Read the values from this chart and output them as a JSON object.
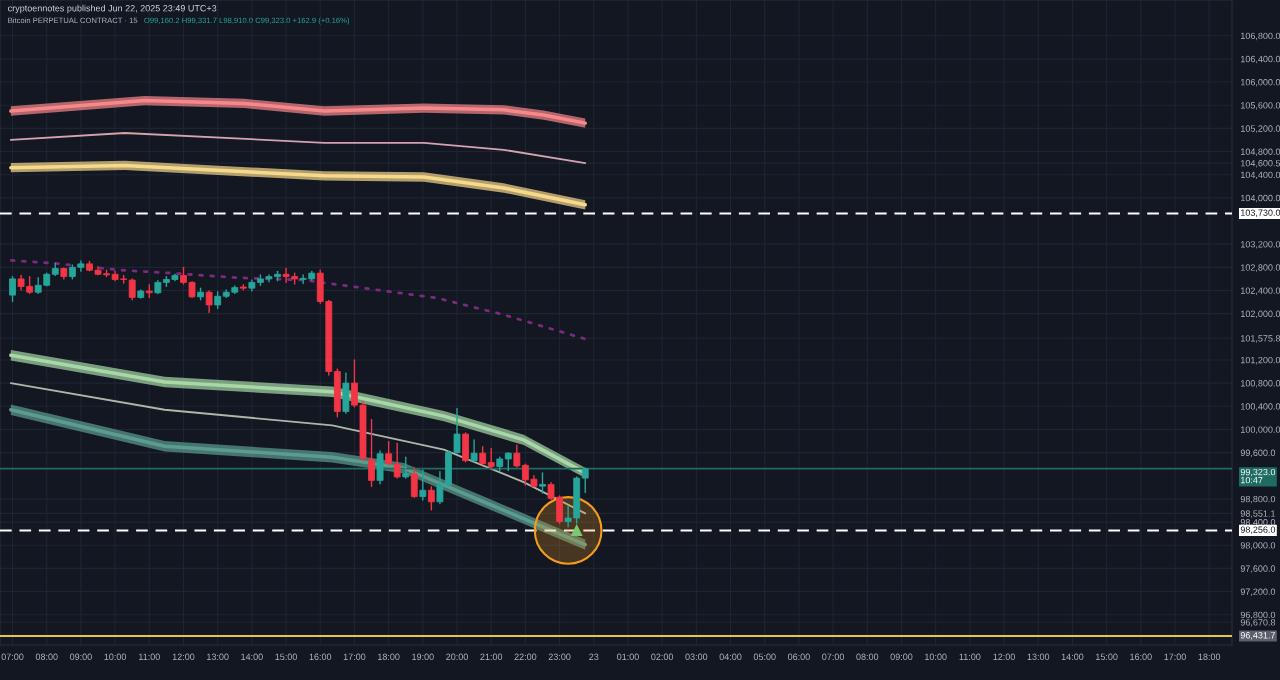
{
  "chart_data": {
    "type": "candlestick",
    "title": "Bitcoin PERPETUAL CONTRACT · 15",
    "subtitle": "O99,160.2 H99,331.7 L98,910.0 C99,323.0 +162.9 (+0.16%)",
    "annotations": [
      "cryptoennotes published Jun 22, 2025 23:49 UTC+3"
    ],
    "x": [
      "2025-06-22T07:00",
      "2025-06-22T07:15",
      "2025-06-22T07:30",
      "2025-06-22T07:45",
      "2025-06-22T08:00",
      "2025-06-22T08:15",
      "2025-06-22T08:30",
      "2025-06-22T08:45",
      "2025-06-22T09:00",
      "2025-06-22T09:15",
      "2025-06-22T09:30",
      "2025-06-22T09:45",
      "2025-06-22T10:00",
      "2025-06-22T10:15",
      "2025-06-22T10:30",
      "2025-06-22T10:45",
      "2025-06-22T11:00",
      "2025-06-22T11:15",
      "2025-06-22T11:30",
      "2025-06-22T11:45",
      "2025-06-22T12:00",
      "2025-06-22T12:15",
      "2025-06-22T12:30",
      "2025-06-22T12:45",
      "2025-06-22T13:00",
      "2025-06-22T13:15",
      "2025-06-22T13:30",
      "2025-06-22T13:45",
      "2025-06-22T14:00",
      "2025-06-22T14:15",
      "2025-06-22T14:30",
      "2025-06-22T14:45",
      "2025-06-22T15:00",
      "2025-06-22T15:15",
      "2025-06-22T15:30",
      "2025-06-22T15:45",
      "2025-06-22T16:00",
      "2025-06-22T16:15",
      "2025-06-22T16:30",
      "2025-06-22T16:45",
      "2025-06-22T17:00",
      "2025-06-22T17:15",
      "2025-06-22T17:30",
      "2025-06-22T17:45",
      "2025-06-22T18:00",
      "2025-06-22T18:15",
      "2025-06-22T18:30",
      "2025-06-22T18:45",
      "2025-06-22T19:00",
      "2025-06-22T19:15",
      "2025-06-22T19:30",
      "2025-06-22T19:45",
      "2025-06-22T20:00",
      "2025-06-22T20:15",
      "2025-06-22T20:30",
      "2025-06-22T20:45",
      "2025-06-22T21:00",
      "2025-06-22T21:15",
      "2025-06-22T21:30",
      "2025-06-22T21:45",
      "2025-06-22T22:00",
      "2025-06-22T22:15",
      "2025-06-22T22:30",
      "2025-06-22T22:45",
      "2025-06-22T23:00",
      "2025-06-22T23:15",
      "2025-06-22T23:30",
      "2025-06-22T23:45"
    ],
    "ohlc": [
      [
        102320,
        102640,
        102210,
        102600
      ],
      [
        102600,
        102660,
        102410,
        102470
      ],
      [
        102470,
        102640,
        102350,
        102370
      ],
      [
        102370,
        102620,
        102350,
        102490
      ],
      [
        102490,
        102700,
        102480,
        102680
      ],
      [
        102680,
        102870,
        102660,
        102780
      ],
      [
        102780,
        102790,
        102600,
        102640
      ],
      [
        102640,
        102840,
        102600,
        102800
      ],
      [
        102800,
        102910,
        102730,
        102860
      ],
      [
        102860,
        102900,
        102740,
        102750
      ],
      [
        102750,
        102810,
        102670,
        102680
      ],
      [
        102690,
        102750,
        102640,
        102670
      ],
      [
        102680,
        102730,
        102570,
        102590
      ],
      [
        102600,
        102660,
        102530,
        102590
      ],
      [
        102580,
        102600,
        102240,
        102280
      ],
      [
        102280,
        102410,
        102270,
        102390
      ],
      [
        102390,
        102500,
        102280,
        102360
      ],
      [
        102360,
        102570,
        102350,
        102540
      ],
      [
        102540,
        102640,
        102470,
        102590
      ],
      [
        102590,
        102680,
        102570,
        102660
      ],
      [
        102660,
        102800,
        102510,
        102540
      ],
      [
        102540,
        102550,
        102280,
        102290
      ],
      [
        102290,
        102440,
        102240,
        102370
      ],
      [
        102370,
        102390,
        102020,
        102150
      ],
      [
        102150,
        102380,
        102090,
        102300
      ],
      [
        102300,
        102410,
        102280,
        102370
      ],
      [
        102370,
        102480,
        102350,
        102450
      ],
      [
        102460,
        102500,
        102410,
        102440
      ],
      [
        102440,
        102580,
        102390,
        102540
      ],
      [
        102540,
        102670,
        102490,
        102600
      ],
      [
        102600,
        102670,
        102550,
        102640
      ],
      [
        102640,
        102730,
        102570,
        102680
      ],
      [
        102680,
        102780,
        102540,
        102640
      ],
      [
        102640,
        102700,
        102510,
        102600
      ],
      [
        102590,
        102670,
        102520,
        102610
      ],
      [
        102600,
        102730,
        102580,
        102700
      ],
      [
        102700,
        102750,
        102180,
        102210
      ],
      [
        102210,
        102230,
        100940,
        101000
      ],
      [
        101000,
        101040,
        100220,
        100310
      ],
      [
        100310,
        100970,
        100280,
        100800
      ],
      [
        100800,
        101200,
        100390,
        100420
      ],
      [
        100420,
        100480,
        99470,
        99500
      ],
      [
        99480,
        100170,
        99020,
        99120
      ],
      [
        99120,
        99630,
        99060,
        99580
      ],
      [
        99580,
        99790,
        99390,
        99410
      ],
      [
        99400,
        99760,
        99160,
        99180
      ],
      [
        99180,
        99520,
        99160,
        99240
      ],
      [
        99230,
        99330,
        98830,
        98840
      ],
      [
        98840,
        99300,
        98780,
        98950
      ],
      [
        98950,
        99010,
        98610,
        98750
      ],
      [
        98750,
        99270,
        98720,
        99040
      ],
      [
        99040,
        99620,
        99020,
        99600
      ],
      [
        99600,
        100360,
        99590,
        99920
      ],
      [
        99920,
        99940,
        99440,
        99460
      ],
      [
        99460,
        99820,
        99440,
        99590
      ],
      [
        99590,
        99700,
        99390,
        99410
      ],
      [
        99430,
        99670,
        99330,
        99360
      ],
      [
        99360,
        99520,
        99290,
        99490
      ],
      [
        99490,
        99600,
        99290,
        99590
      ],
      [
        99590,
        99730,
        99350,
        99370
      ],
      [
        99380,
        99400,
        99040,
        99130
      ],
      [
        99140,
        99200,
        99010,
        99020
      ],
      [
        99020,
        99250,
        98900,
        99050
      ],
      [
        99050,
        99080,
        98790,
        98810
      ],
      [
        98830,
        98850,
        98380,
        98410
      ],
      [
        98410,
        98670,
        98320,
        98470
      ],
      [
        98470,
        99180,
        98380,
        99160
      ],
      [
        99160.2,
        99331.7,
        98910.0,
        99323.0
      ]
    ],
    "series": [
      {
        "type": "line",
        "color": "#f7888a",
        "x": [
          "2025-06-22T06:57",
          "2025-06-22T10:52",
          "2025-06-22T13:47",
          "2025-06-22T16:07",
          "2025-06-22T19:02",
          "2025-06-22T21:22",
          "2025-06-22T22:32",
          "2025-06-22T23:45"
        ],
        "values": [
          105500,
          105680,
          105630,
          105500,
          105550,
          105520,
          105430,
          105290
        ],
        "lower": [
          105420,
          105600,
          105550,
          105420,
          105470,
          105440,
          105350,
          105210
        ],
        "upper": [
          105580,
          105760,
          105710,
          105580,
          105630,
          105600,
          105510,
          105370
        ]
      },
      {
        "type": "line",
        "color": "#d4a3ad",
        "x": [
          "2025-06-22T06:57",
          "2025-06-22T10:17",
          "2025-06-22T16:07",
          "2025-06-22T19:02",
          "2025-06-22T21:22",
          "2025-06-22T23:45"
        ],
        "values": [
          105000,
          105120,
          104950,
          104950,
          104830,
          104600
        ]
      },
      {
        "type": "line",
        "color": "#f7d98b",
        "x": [
          "2025-06-22T06:57",
          "2025-06-22T10:17",
          "2025-06-22T16:07",
          "2025-06-22T19:02",
          "2025-06-22T21:22",
          "2025-06-22T23:45"
        ],
        "values": [
          104520,
          104560,
          104380,
          104360,
          104170,
          103880
        ],
        "lower": [
          104440,
          104480,
          104300,
          104280,
          104090,
          103800
        ],
        "upper": [
          104600,
          104640,
          104460,
          104440,
          104250,
          103960
        ]
      },
      {
        "type": "line",
        "color": "#a8d8a8",
        "x": [
          "2025-06-22T06:57",
          "2025-06-22T11:27",
          "2025-06-22T16:21",
          "2025-06-22T19:37",
          "2025-06-22T21:57",
          "2025-06-22T23:45"
        ],
        "values": [
          101280,
          100820,
          100650,
          100230,
          99820,
          99250
        ],
        "lower": [
          101190,
          100730,
          100560,
          100140,
          99730,
          99160
        ],
        "upper": [
          101370,
          100910,
          100740,
          100320,
          99910,
          99340
        ]
      },
      {
        "type": "line",
        "color": "#a9b8a8",
        "x": [
          "2025-06-22T06:57",
          "2025-06-22T11:27",
          "2025-06-22T16:21",
          "2025-06-22T19:37",
          "2025-06-22T21:57",
          "2025-06-22T23:45"
        ],
        "values": [
          100800,
          100340,
          100070,
          99650,
          99090,
          98550
        ]
      },
      {
        "type": "line",
        "color": "#5c9c8f",
        "x": [
          "2025-06-22T06:57",
          "2025-06-22T11:27",
          "2025-06-22T16:21",
          "2025-06-22T18:27",
          "2025-06-22T20:47",
          "2025-06-22T23:45"
        ],
        "values": [
          100340,
          99710,
          99520,
          99330,
          98750,
          98010
        ],
        "lower": [
          100250,
          99620,
          99430,
          99240,
          98660,
          97920
        ],
        "upper": [
          100430,
          99800,
          99610,
          99420,
          98840,
          98100
        ]
      },
      {
        "type": "line",
        "color": "#7b2a7e",
        "line_style": "dotted",
        "x": [
          "2025-06-22T06:58",
          "2025-06-22T08:14",
          "2025-06-22T10:11",
          "2025-06-22T11:39",
          "2025-06-22T13:35",
          "2025-06-22T15:32",
          "2025-06-22T19:25",
          "2025-06-22T21:22",
          "2025-06-22T23:46"
        ],
        "values": [
          102920,
          102870,
          102750,
          102700,
          102620,
          102580,
          102270,
          101980,
          101560
        ]
      }
    ],
    "ref_lines": [
      {
        "axis": "y",
        "value": 103730,
        "color": "#ffffff",
        "line_style": "dashed",
        "label": "103,730.0"
      },
      {
        "axis": "y",
        "value": 99323.0,
        "color": "#1f6b62",
        "line_style": "solid",
        "label": "99,323.0\n10:47"
      },
      {
        "axis": "y",
        "value": 98256.0,
        "color": "#ffffff",
        "line_style": "dashed",
        "label": "98,256.0"
      },
      {
        "axis": "y",
        "value": 96431.7,
        "color": "#e8c547",
        "line_style": "solid",
        "label": "96,431.7"
      }
    ],
    "xlim": [
      "2025-06-22T06:38",
      "2025-06-23T18:40"
    ],
    "ylim": [
      96277,
      107417
    ],
    "xticks": [
      {
        "value": "2025-06-22T07:00",
        "label": "07:00"
      },
      {
        "value": "2025-06-22T08:00",
        "label": "08:00"
      },
      {
        "value": "2025-06-22T09:00",
        "label": "09:00"
      },
      {
        "value": "2025-06-22T10:00",
        "label": "10:00"
      },
      {
        "value": "2025-06-22T11:00",
        "label": "11:00"
      },
      {
        "value": "2025-06-22T12:00",
        "label": "12:00"
      },
      {
        "value": "2025-06-22T13:00",
        "label": "13:00"
      },
      {
        "value": "2025-06-22T14:00",
        "label": "14:00"
      },
      {
        "value": "2025-06-22T15:00",
        "label": "15:00"
      },
      {
        "value": "2025-06-22T16:00",
        "label": "16:00"
      },
      {
        "value": "2025-06-22T17:00",
        "label": "17:00"
      },
      {
        "value": "2025-06-22T18:00",
        "label": "18:00"
      },
      {
        "value": "2025-06-22T19:00",
        "label": "19:00"
      },
      {
        "value": "2025-06-22T20:00",
        "label": "20:00"
      },
      {
        "value": "2025-06-22T21:00",
        "label": "21:00"
      },
      {
        "value": "2025-06-22T22:00",
        "label": "22:00"
      },
      {
        "value": "2025-06-22T23:00",
        "label": "23:00"
      },
      {
        "value": "2025-06-23T00:00",
        "label": "23"
      },
      {
        "value": "2025-06-23T01:00",
        "label": "01:00"
      },
      {
        "value": "2025-06-23T02:00",
        "label": "02:00"
      },
      {
        "value": "2025-06-23T03:00",
        "label": "03:00"
      },
      {
        "value": "2025-06-23T04:00",
        "label": "04:00"
      },
      {
        "value": "2025-06-23T05:00",
        "label": "05:00"
      },
      {
        "value": "2025-06-23T06:00",
        "label": "06:00"
      },
      {
        "value": "2025-06-23T07:00",
        "label": "07:00"
      },
      {
        "value": "2025-06-23T08:00",
        "label": "08:00"
      },
      {
        "value": "2025-06-23T09:00",
        "label": "09:00"
      },
      {
        "value": "2025-06-23T10:00",
        "label": "10:00"
      },
      {
        "value": "2025-06-23T11:00",
        "label": "11:00"
      },
      {
        "value": "2025-06-23T12:00",
        "label": "12:00"
      },
      {
        "value": "2025-06-23T13:00",
        "label": "13:00"
      },
      {
        "value": "2025-06-23T14:00",
        "label": "14:00"
      },
      {
        "value": "2025-06-23T15:00",
        "label": "15:00"
      },
      {
        "value": "2025-06-23T16:00",
        "label": "16:00"
      },
      {
        "value": "2025-06-23T17:00",
        "label": "17:00"
      },
      {
        "value": "2025-06-23T18:00",
        "label": "18:00"
      }
    ],
    "yticks": [
      {
        "value": 96670.8,
        "label": "96,670.8"
      },
      {
        "value": 96800,
        "label": "96,800.0"
      },
      {
        "value": 97200,
        "label": "97,200.0"
      },
      {
        "value": 97600,
        "label": "97,600.0"
      },
      {
        "value": 98000,
        "label": "98,000.0"
      },
      {
        "value": 98400,
        "label": "98,400.0"
      },
      {
        "value": 98551.1,
        "label": "98,551.1"
      },
      {
        "value": 98800,
        "label": "98,800.0"
      },
      {
        "value": 99600,
        "label": "99,600.0"
      },
      {
        "value": 100000,
        "label": "100,000.0"
      },
      {
        "value": 100400,
        "label": "100,400.0"
      },
      {
        "value": 100800,
        "label": "100,800.0"
      },
      {
        "value": 101200,
        "label": "101,200.0"
      },
      {
        "value": 101575.8,
        "label": "101,575.8"
      },
      {
        "value": 102000,
        "label": "102,000.0"
      },
      {
        "value": 102400,
        "label": "102,400.0"
      },
      {
        "value": 102800,
        "label": "102,800.0"
      },
      {
        "value": 103200,
        "label": "103,200.0"
      },
      {
        "value": 104000,
        "label": "104,000.0"
      },
      {
        "value": 104400,
        "label": "104,400.0"
      },
      {
        "value": 104600.5,
        "label": "104,600.5"
      },
      {
        "value": 104800,
        "label": "104,800.0"
      },
      {
        "value": 105200,
        "label": "105,200.0"
      },
      {
        "value": 105600,
        "label": "105,600.0"
      },
      {
        "value": 106000,
        "label": "106,000.0"
      },
      {
        "value": 106400,
        "label": "106,400.0"
      },
      {
        "value": 106800,
        "label": "106,800.0"
      }
    ],
    "grid": true
  }
}
